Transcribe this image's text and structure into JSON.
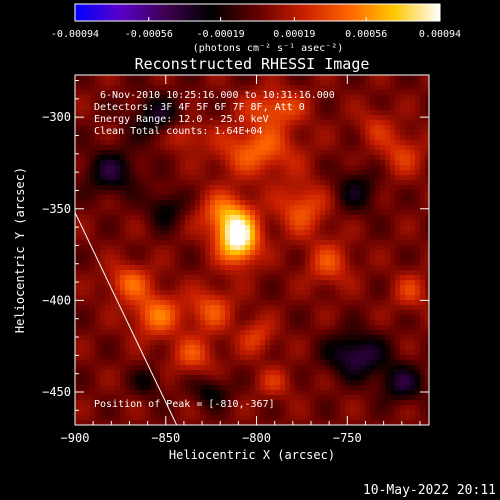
{
  "chart_data": {
    "type": "heatmap",
    "title": "Reconstructed RHESSI Image",
    "xlabel": "Heliocentric X (arcsec)",
    "ylabel": "Heliocentric Y (arcsec)",
    "xlim": [
      -900,
      -705
    ],
    "ylim": [
      -468,
      -277
    ],
    "xticks": [
      -900,
      -850,
      -800,
      -750
    ],
    "yticks": [
      -300,
      -350,
      -400,
      -450
    ],
    "colorbar": {
      "ticks": [
        "-0.00094",
        "-0.00056",
        "-0.00019",
        "0.00019",
        "0.00056",
        "0.00094"
      ],
      "tick_values": [
        -0.00094,
        -0.00056,
        -0.00019,
        0.00019,
        0.00056,
        0.00094
      ],
      "range": [
        -0.00094,
        0.00094
      ],
      "unit_label": "(photons cm⁻² s⁻¹ asec⁻²)",
      "colormap": [
        "#0000ff",
        "#5a00c8",
        "#3d0050",
        "#000000",
        "#640000",
        "#c81e00",
        "#ff6400",
        "#ffc800",
        "#ffffff"
      ]
    },
    "peak": {
      "x": -810,
      "y": -367,
      "value": 0.00094
    },
    "annotations": {
      "line1": "6-Nov-2010 10:25:16.000 to 10:31:16.000",
      "line2": "Detectors: 3F 4F 5F 6F 7F 8F, Att 0",
      "line3": "Energy Range: 12.0 - 25.0 keV",
      "line4": "Clean    Total counts: 1.64E+04",
      "peak_text": "Position of Peak = [-810,-367]"
    },
    "limb_line": [
      {
        "x": -900,
        "y": -352
      },
      {
        "x": -844,
        "y": -468
      }
    ]
  },
  "footer": {
    "timestamp": "10-May-2022 20:11"
  }
}
